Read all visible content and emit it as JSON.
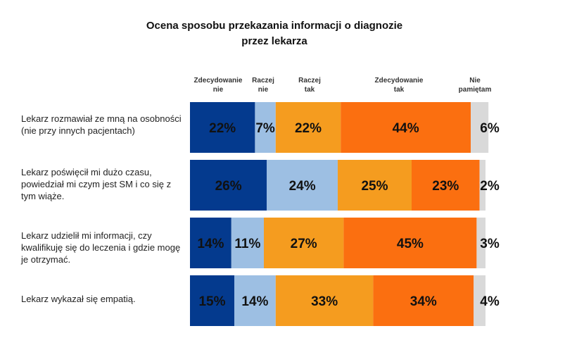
{
  "chart_data": {
    "type": "bar",
    "orientation": "horizontal",
    "stacked": true,
    "title": "Ocena sposobu przekazania informacji o diagnozie\nprzez lekarza",
    "categories": [
      "Lekarz rozmawiał ze mną na osobności (nie przy innych pacjentach)",
      "Lekarz poświęcił mi dużo czasu, powiedział mi czym jest SM i co się z tym wiąże.",
      "Lekarz udzielił mi informacji, czy kwalifikuję się do leczenia i gdzie mogę je otrzymać.",
      "Lekarz wykazał się empatią."
    ],
    "series": [
      {
        "name": "Zdecydowanie nie",
        "color": "#043a8e",
        "values": [
          22,
          26,
          14,
          15
        ],
        "labels": [
          "22%",
          "26%",
          "14%",
          "15%"
        ]
      },
      {
        "name": "Raczej nie",
        "color": "#9dbfe3",
        "values": [
          7,
          24,
          11,
          14
        ],
        "labels": [
          "7%",
          "24%",
          "11%",
          "14%"
        ]
      },
      {
        "name": "Raczej tak",
        "color": "#f59c1f",
        "values": [
          22,
          25,
          27,
          33
        ],
        "labels": [
          "22%",
          "25%",
          "27%",
          "33%"
        ]
      },
      {
        "name": "Zdecydowanie tak",
        "color": "#fb6f10",
        "values": [
          44,
          23,
          45,
          34
        ],
        "labels": [
          "44%",
          "23%",
          "45%",
          "34%"
        ]
      },
      {
        "name": "Nie pamiętam",
        "color": "#d9d9d9",
        "values": [
          6,
          2,
          3,
          4
        ],
        "labels": [
          "6%",
          "2%",
          "3%",
          "4%"
        ]
      }
    ],
    "legend_placement": "top",
    "legend_labels": [
      "Zdecydowanie\nnie",
      "Raczej\nnie",
      "Raczej\ntak",
      "Zdecydowanie\ntak",
      "Nie\npamiętam"
    ],
    "grid": false
  }
}
